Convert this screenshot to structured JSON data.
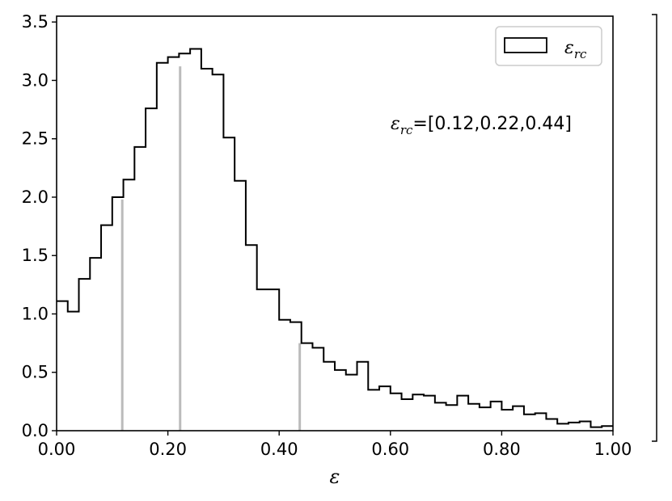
{
  "chart_data": {
    "type": "bar",
    "title": "",
    "xlabel": "ε",
    "ylabel": "",
    "xlim": [
      0.0,
      1.0
    ],
    "ylim": [
      0.0,
      3.55
    ],
    "grid": false,
    "legend_position": "top-right",
    "x_ticks": [
      "0.00",
      "0.20",
      "0.40",
      "0.60",
      "0.80",
      "1.00"
    ],
    "y_ticks": [
      "0.0",
      "0.5",
      "1.0",
      "1.5",
      "2.0",
      "2.5",
      "3.0",
      "3.5"
    ],
    "bin_width": 0.02,
    "series": [
      {
        "name": "ε_rc",
        "legend_main": "ε",
        "legend_sub": "rc",
        "style": "step",
        "color": "#000000",
        "values": [
          1.11,
          1.02,
          1.3,
          1.48,
          1.76,
          2.0,
          2.15,
          2.43,
          2.76,
          3.15,
          3.2,
          3.23,
          3.27,
          3.1,
          3.05,
          2.51,
          2.14,
          1.59,
          1.21,
          1.21,
          0.95,
          0.93,
          0.75,
          0.71,
          0.59,
          0.52,
          0.48,
          0.59,
          0.35,
          0.38,
          0.32,
          0.27,
          0.31,
          0.3,
          0.24,
          0.22,
          0.3,
          0.23,
          0.2,
          0.25,
          0.18,
          0.21,
          0.14,
          0.15,
          0.1,
          0.06,
          0.07,
          0.08,
          0.03,
          0.04
        ]
      }
    ],
    "markers": {
      "color": "#bbbbbb",
      "positions": [
        0.118,
        0.222,
        0.437
      ],
      "heights": [
        1.98,
        3.12,
        0.75
      ]
    },
    "annotation": {
      "prefix_main": "ε",
      "prefix_sub": "rc",
      "text": "=[0.12,0.22,0.44]"
    }
  }
}
